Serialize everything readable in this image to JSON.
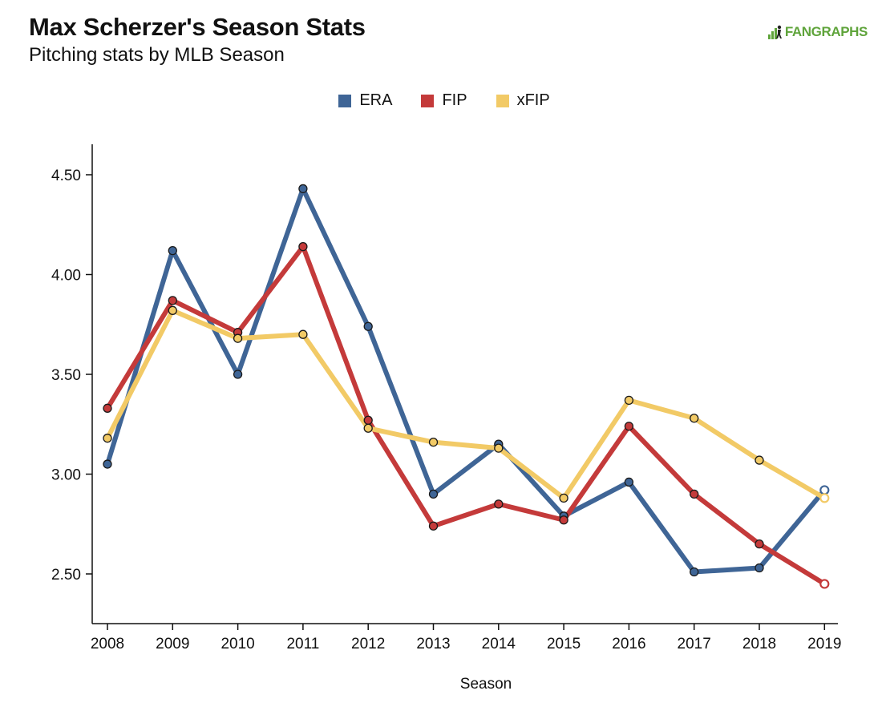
{
  "header": {
    "title": "Max Scherzer's Season Stats",
    "subtitle": "Pitching stats by MLB Season"
  },
  "logo": {
    "text": "FANGRAPHS",
    "color": "#5fa43b",
    "icon": "fangraphs-logo-icon"
  },
  "chart_data": {
    "type": "line",
    "title": "Max Scherzer's Season Stats",
    "subtitle": "Pitching stats by MLB Season",
    "xlabel": "Season",
    "ylabel": "",
    "x": [
      2008,
      2009,
      2010,
      2011,
      2012,
      2013,
      2014,
      2015,
      2016,
      2017,
      2018,
      2019
    ],
    "x_tick_labels": [
      "2008",
      "2009",
      "2010",
      "2011",
      "2012",
      "2013",
      "2014",
      "2015",
      "2016",
      "2017",
      "2018",
      "2019"
    ],
    "ylim": [
      2.25,
      4.65
    ],
    "y_ticks": [
      2.5,
      3.0,
      3.5,
      4.0,
      4.5
    ],
    "y_tick_labels": [
      "2.50",
      "3.00",
      "3.50",
      "4.00",
      "4.50"
    ],
    "grid": false,
    "legend_position": "top-center",
    "last_point_style": "hollow",
    "series": [
      {
        "name": "ERA",
        "color": "#3f6596",
        "values": [
          3.05,
          4.12,
          3.5,
          4.43,
          3.74,
          2.9,
          3.15,
          2.79,
          2.96,
          2.51,
          2.53,
          2.92
        ]
      },
      {
        "name": "FIP",
        "color": "#c43a3a",
        "values": [
          3.33,
          3.87,
          3.71,
          4.14,
          3.27,
          2.74,
          2.85,
          2.77,
          3.24,
          2.9,
          2.65,
          2.45
        ]
      },
      {
        "name": "xFIP",
        "color": "#f2ca66",
        "values": [
          3.18,
          3.82,
          3.68,
          3.7,
          3.23,
          3.16,
          3.13,
          2.88,
          3.37,
          3.28,
          3.07,
          2.88
        ]
      }
    ]
  }
}
